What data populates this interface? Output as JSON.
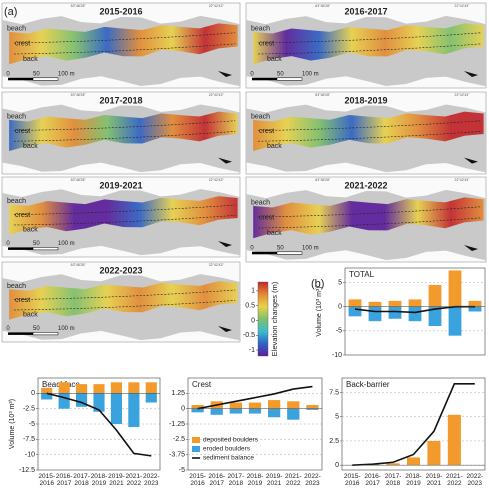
{
  "panel_labels": [
    "(a)",
    "(b)"
  ],
  "maps": [
    {
      "title": "2015-2016",
      "labels": [
        "beach",
        "crest",
        "back"
      ],
      "scale": [
        "0",
        "50",
        "100 m"
      ],
      "coords": [
        "63°48'28\"",
        "22°42'43\""
      ]
    },
    {
      "title": "2016-2017",
      "labels": [
        "beach",
        "crest",
        "back"
      ],
      "scale": [
        "0",
        "50",
        "100 m"
      ],
      "coords": [
        "63°48'28\"",
        "22°42'43\""
      ]
    },
    {
      "title": "2017-2018",
      "labels": [
        "beach",
        "crest",
        "back"
      ],
      "coords": [
        "63°48'28\"",
        "22°42'43\""
      ]
    },
    {
      "title": "2018-2019",
      "labels": [
        "beach",
        "crest",
        "back"
      ],
      "coords": [
        "63°48'28\"",
        "22°42'43\""
      ]
    },
    {
      "title": "2019-2021",
      "labels": [
        "beach",
        "crest",
        "back"
      ],
      "scale": [
        "0",
        "50",
        "100 m"
      ],
      "coords": [
        "63°48'28\"",
        "22°42'43\""
      ]
    },
    {
      "title": "2021-2022",
      "labels": [
        "beach",
        "crest",
        "back"
      ],
      "scale": [
        "0",
        "50",
        "100 m"
      ],
      "coords": [
        "63°48'28\"",
        "22°42'43\""
      ]
    },
    {
      "title": "2022-2023",
      "labels": [
        "beach",
        "crest",
        "back"
      ],
      "scale": [
        "0",
        "50",
        "100 m"
      ],
      "coords": [
        "63°48'28\"",
        "22°42'43\""
      ]
    }
  ],
  "colorbar": {
    "title": "Elevation changes (m)",
    "lim": [
      -1.2,
      1.3
    ],
    "ticks": [
      1,
      0.5,
      0,
      -0.5,
      -1
    ]
  },
  "chart_data": [
    {
      "type": "bar",
      "title": "TOTAL",
      "y_label": "Volume (10³ m³)",
      "ylim": [
        -10,
        8
      ],
      "yticks": [
        5,
        0,
        -5,
        -10
      ],
      "grid": true,
      "series": [
        {
          "name": "deposited boulders",
          "kind": "bar",
          "color": "#f39a2c",
          "values": [
            1.5,
            1,
            1.2,
            1.5,
            4.5,
            7.5,
            1.2
          ]
        },
        {
          "name": "eroded boulders",
          "kind": "bar",
          "color": "#3aa2dc",
          "values": [
            -2,
            -3,
            -2.5,
            -3,
            -4,
            -6,
            -1
          ]
        },
        {
          "name": "sediment balance",
          "kind": "line",
          "color": "#111111",
          "values": [
            -0.5,
            -1,
            -1,
            -1.2,
            -0.5,
            0,
            0
          ]
        }
      ]
    },
    {
      "type": "bar",
      "title": "Beachface",
      "y_label": "Volume (10³ m³)",
      "ylim": [
        -12.5,
        2.5
      ],
      "yticks": [
        0,
        -2.5,
        -5,
        -7.5,
        -10,
        -12.5
      ],
      "grid": true,
      "categories": [
        "2015-\n2016",
        "2016-\n2017",
        "2017-\n2018",
        "2018-\n2019",
        "2019-\n2021",
        "2021-\n2022",
        "2022-\n2023"
      ],
      "series": [
        {
          "name": "deposited boulders",
          "kind": "bar",
          "color": "#f39a2c",
          "values": [
            0.9,
            1.8,
            1.5,
            1.5,
            1.8,
            1.8,
            1.8
          ]
        },
        {
          "name": "eroded boulders",
          "kind": "bar",
          "color": "#3aa2dc",
          "values": [
            -1,
            -2.5,
            -2.2,
            -3,
            -5,
            -5.5,
            -1.5
          ]
        },
        {
          "name": "sediment balance",
          "kind": "line",
          "color": "#111111",
          "values": [
            0,
            -0.7,
            -1.5,
            -2.7,
            -6,
            -9.8,
            -10.2
          ]
        }
      ]
    },
    {
      "type": "bar",
      "title": "Crest",
      "ylim": [
        -5,
        2.5
      ],
      "yticks": [
        1.25,
        0,
        -1.25,
        -2.5,
        -3.75,
        -5
      ],
      "grid": true,
      "legend": "lower left",
      "categories": [
        "2015-\n2016",
        "2016-\n2017",
        "2017-\n2018",
        "2018-\n2019",
        "2019-\n2021",
        "2021-\n2022",
        "2022-\n2023"
      ],
      "series": [
        {
          "name": "deposited boulders",
          "kind": "bar",
          "color": "#f39a2c",
          "values": [
            0.3,
            0.6,
            0.5,
            0.5,
            0.7,
            0.6,
            0.3
          ]
        },
        {
          "name": "eroded boulders",
          "kind": "bar",
          "color": "#3aa2dc",
          "values": [
            -0.3,
            -0.5,
            -0.4,
            -0.4,
            -0.7,
            -0.9,
            -0.1
          ]
        },
        {
          "name": "sediment balance",
          "kind": "line",
          "color": "#111111",
          "values": [
            0,
            0.3,
            0.6,
            0.9,
            1.2,
            1.6,
            1.8
          ]
        }
      ]
    },
    {
      "type": "bar",
      "title": "Back-barrier",
      "ylim": [
        -0.5,
        9
      ],
      "yticks": [
        7.5,
        5,
        2.5,
        0
      ],
      "grid": true,
      "categories": [
        "2015-\n2016",
        "2016-\n2017",
        "2017-\n2018",
        "2018-\n2019",
        "2019-\n2021",
        "2021-\n2022",
        "2022-\n2023"
      ],
      "series": [
        {
          "name": "deposited boulders",
          "kind": "bar",
          "color": "#f39a2c",
          "values": [
            0,
            0.1,
            0.2,
            0.8,
            2.5,
            5.2,
            0
          ]
        },
        {
          "name": "eroded boulders",
          "kind": "bar",
          "color": "#3aa2dc",
          "values": [
            0,
            0,
            0,
            0,
            0,
            0,
            0
          ]
        },
        {
          "name": "sediment balance",
          "kind": "line",
          "color": "#111111",
          "values": [
            0,
            0.1,
            0.3,
            1.1,
            3.5,
            8.4,
            8.4
          ]
        }
      ]
    }
  ]
}
